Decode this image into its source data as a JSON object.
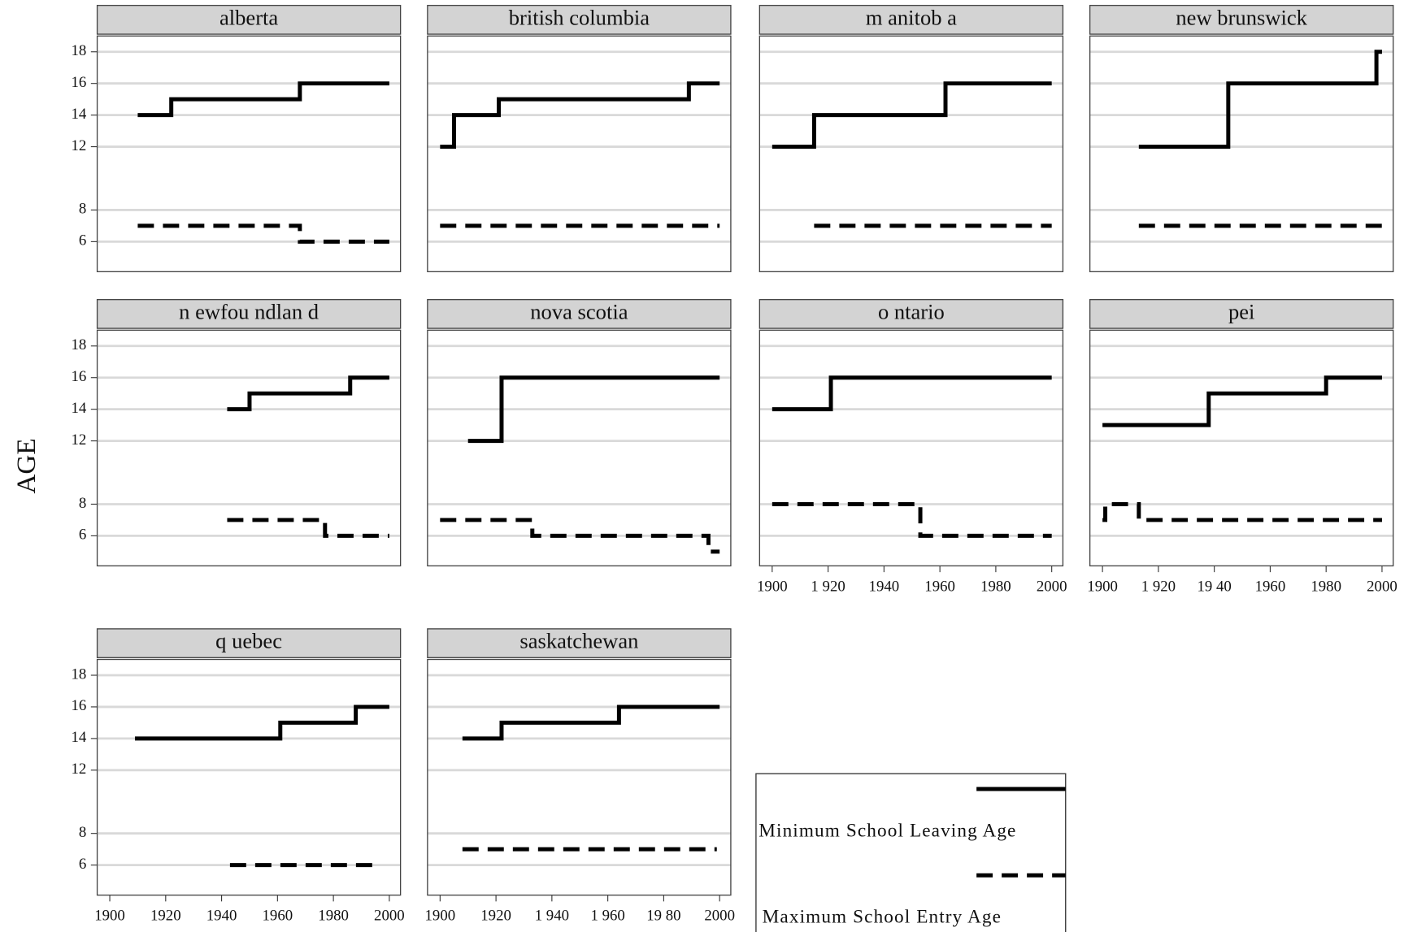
{
  "y_label": "AGE",
  "legend": [
    {
      "name": "Minimum School Leaving Age",
      "color": "#000000",
      "linestyle": "solid"
    },
    {
      "name": "Maximum School Entry Age",
      "color": "#000000",
      "linestyle": "dashed"
    }
  ],
  "chart_data": [
    {
      "type": "line",
      "title": "alberta",
      "step": "post",
      "grid": true,
      "x": [
        1910,
        1922,
        1968,
        2000
      ],
      "series": [
        {
          "values": [
            14,
            15,
            16,
            16
          ]
        },
        {
          "values": [
            7,
            7,
            6,
            6
          ]
        }
      ],
      "xlim": [
        1895.5,
        2004
      ],
      "ylim": [
        4.1,
        19
      ],
      "yticks": [
        6,
        8,
        12,
        14,
        16,
        18
      ]
    },
    {
      "type": "line",
      "title": "british columbia",
      "step": "post",
      "grid": true,
      "x": [
        1900,
        1905,
        1921,
        1989,
        2000
      ],
      "series": [
        {
          "values": [
            12,
            14,
            15,
            16,
            16
          ]
        },
        {
          "values": [
            7,
            7,
            7,
            7,
            7
          ]
        }
      ],
      "xlim": [
        1895.5,
        2004
      ],
      "ylim": [
        4.1,
        19
      ],
      "yticks": [
        6,
        8,
        12,
        14,
        16,
        18
      ]
    },
    {
      "type": "line",
      "title": "m anitob a",
      "step": "post",
      "grid": true,
      "x": [
        1900,
        1915,
        1962,
        2000
      ],
      "series": [
        {
          "values": [
            12,
            14,
            16,
            16
          ]
        },
        {
          "values": [
            null,
            7,
            7,
            7
          ]
        }
      ],
      "xlim": [
        1895.5,
        2004
      ],
      "ylim": [
        4.1,
        19
      ],
      "yticks": [
        6,
        8,
        12,
        14,
        16,
        18
      ]
    },
    {
      "type": "line",
      "title": "new brunswick",
      "step": "post",
      "grid": true,
      "x": [
        1913,
        1945,
        1998,
        2000
      ],
      "series": [
        {
          "values": [
            12,
            16,
            18,
            18
          ]
        },
        {
          "values": [
            7,
            7,
            7,
            7
          ]
        }
      ],
      "xlim": [
        1895.5,
        2004
      ],
      "ylim": [
        4.1,
        19
      ],
      "yticks": [
        6,
        8,
        12,
        14,
        16,
        18
      ]
    },
    {
      "type": "line",
      "title": "n ewfou ndlan d",
      "step": "post",
      "grid": true,
      "x": [
        1942,
        1950,
        1977,
        1986,
        2000
      ],
      "series": [
        {
          "values": [
            14,
            15,
            15,
            16,
            16
          ]
        },
        {
          "values": [
            7,
            7,
            6,
            6,
            6
          ]
        }
      ],
      "xlim": [
        1895.5,
        2004
      ],
      "ylim": [
        4.1,
        19
      ],
      "yticks": [
        6,
        8,
        12,
        14,
        16,
        18
      ]
    },
    {
      "type": "line",
      "title": "nova scotia",
      "step": "post",
      "grid": true,
      "x": [
        1900,
        1910,
        1922,
        1933,
        1995,
        1996,
        2000
      ],
      "series": [
        {
          "values": [
            null,
            12,
            16,
            16,
            16,
            16,
            16
          ]
        },
        {
          "values": [
            7,
            7,
            7,
            6,
            6,
            5,
            5
          ]
        }
      ],
      "xlim": [
        1895.5,
        2004
      ],
      "ylim": [
        4.1,
        19
      ],
      "yticks": [
        6,
        8,
        12,
        14,
        16,
        18
      ]
    },
    {
      "type": "line",
      "title": "o ntario",
      "step": "post",
      "grid": true,
      "x": [
        1900,
        1921,
        1953,
        2000
      ],
      "series": [
        {
          "values": [
            14,
            16,
            16,
            16
          ]
        },
        {
          "values": [
            8,
            8,
            6,
            6
          ]
        }
      ],
      "xlim": [
        1895.5,
        2004
      ],
      "ylim": [
        4.1,
        19
      ],
      "yticks": [
        6,
        8,
        12,
        14,
        16,
        18
      ],
      "xticks": [
        1900,
        {
          "value": 1920,
          "label": "1 920"
        },
        1940,
        1960,
        1980,
        2000
      ]
    },
    {
      "type": "line",
      "title": "pei",
      "step": "post",
      "grid": true,
      "x": [
        1900,
        1901,
        1913,
        1938,
        1980,
        2000
      ],
      "series": [
        {
          "values": [
            13,
            13,
            13,
            15,
            16,
            16
          ]
        },
        {
          "values": [
            7,
            8,
            7,
            7,
            7,
            7
          ]
        }
      ],
      "xlim": [
        1895.5,
        2004
      ],
      "ylim": [
        4.1,
        19
      ],
      "yticks": [
        6,
        8,
        12,
        14,
        16,
        18
      ],
      "xticks": [
        1900,
        {
          "value": 1920,
          "label": "1 920"
        },
        {
          "value": 1940,
          "label": "19 40"
        },
        1960,
        1980,
        2000
      ]
    },
    {
      "type": "line",
      "title": "q uebec",
      "step": "post",
      "grid": true,
      "x": [
        1909,
        1943,
        1961,
        1988,
        1997,
        2000
      ],
      "series": [
        {
          "values": [
            14,
            14,
            15,
            16,
            16,
            16
          ]
        },
        {
          "values": [
            null,
            6,
            6,
            6,
            6,
            null
          ]
        }
      ],
      "xlim": [
        1895.5,
        2004
      ],
      "ylim": [
        4.1,
        19
      ],
      "yticks": [
        6,
        8,
        12,
        14,
        16,
        18
      ],
      "xticks": [
        1900,
        1920,
        1940,
        1960,
        1980,
        2000
      ]
    },
    {
      "type": "line",
      "title": "saskatchewan",
      "step": "post",
      "grid": true,
      "x": [
        1908,
        1922,
        1964,
        1999,
        2000
      ],
      "series": [
        {
          "values": [
            14,
            15,
            16,
            16,
            16
          ]
        },
        {
          "values": [
            7,
            7,
            7,
            7,
            null
          ]
        }
      ],
      "xlim": [
        1895.5,
        2004
      ],
      "ylim": [
        4.1,
        19
      ],
      "yticks": [
        6,
        8,
        12,
        14,
        16,
        18
      ],
      "xticks": [
        1900,
        1920,
        {
          "value": 1940,
          "label": "1 940"
        },
        {
          "value": 1960,
          "label": "1 960"
        },
        {
          "value": 1980,
          "label": "19 80"
        },
        2000
      ]
    }
  ]
}
